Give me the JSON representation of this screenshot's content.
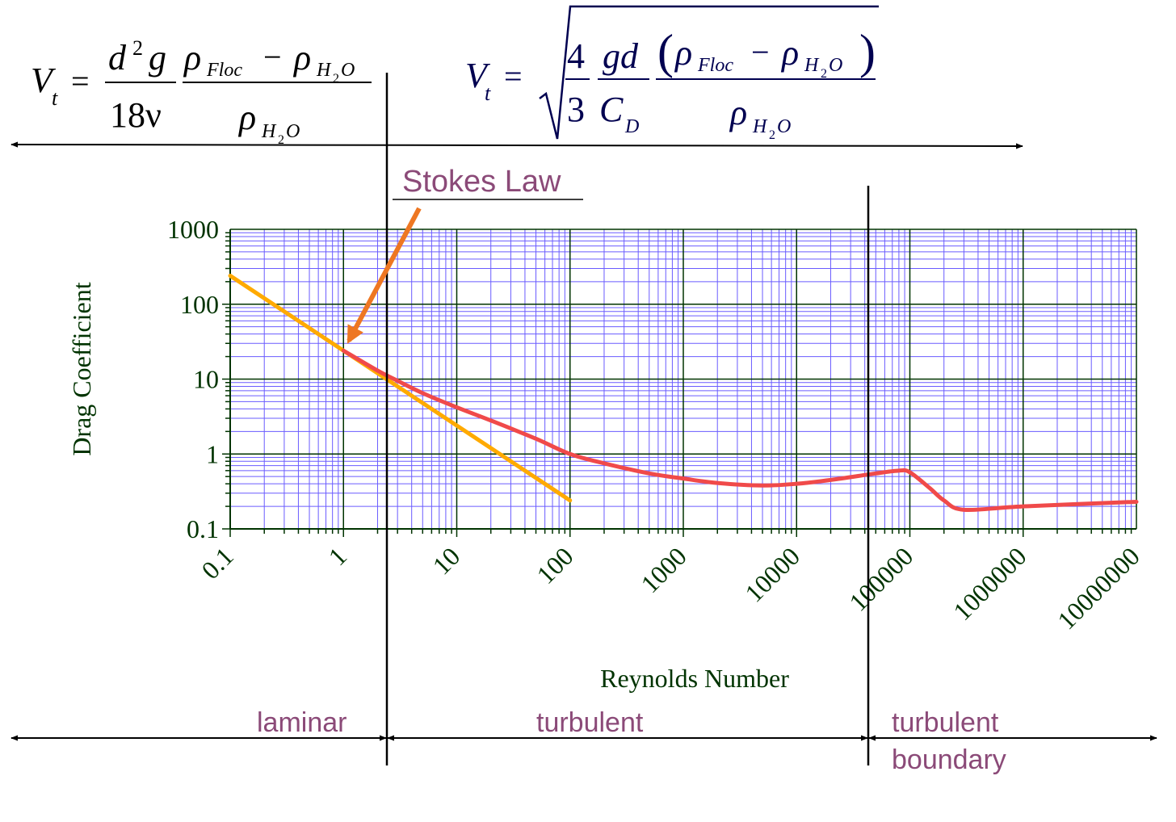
{
  "equations": {
    "stokes": {
      "lhs_v": "V",
      "lhs_t": "t",
      "eq": "=",
      "frac1_num_d": "d",
      "frac1_num_2": "2",
      "frac1_num_g": "g",
      "frac1_den": "18ν",
      "frac2_num_rho1": "ρ",
      "frac2_num_sub1": "Floc",
      "minus": "−",
      "frac2_num_rho2": "ρ",
      "frac2_num_sub2a": "H",
      "frac2_num_sub2b": "2",
      "frac2_num_sub2c": "O",
      "frac2_den_rho": "ρ",
      "frac2_den_suba": "H",
      "frac2_den_subb": "2",
      "frac2_den_subc": "O"
    },
    "general": {
      "lhs_v": "V",
      "lhs_t": "t",
      "eq": "=",
      "f1_num": "4",
      "f1_den": "3",
      "f2_num": "gd",
      "f2_den_c": "C",
      "f2_den_d": "D",
      "paren_l": "(",
      "paren_r": ")",
      "f3_num_rho1": "ρ",
      "f3_num_sub1": "Floc",
      "minus": "−",
      "f3_num_rho2": "ρ",
      "f3_num_sub2a": "H",
      "f3_num_sub2b": "2",
      "f3_num_sub2c": "O",
      "f3_den_rho": "ρ",
      "f3_den_suba": "H",
      "f3_den_subb": "2",
      "f3_den_subc": "O"
    }
  },
  "annotations": {
    "stokes_law": "Stokes Law",
    "regimes": [
      "laminar",
      "turbulent",
      "turbulent",
      "boundary"
    ]
  },
  "colors": {
    "axis_text": "#003300",
    "grid_minor": "#6a5cff",
    "grid_major": "#003300",
    "stokes_line": "#ffaa00",
    "drag_curve": "#f04a4a",
    "arrow": "#ee7722",
    "annotation_text": "#8b4a78",
    "equation_text": "#000050"
  },
  "chart_data": {
    "type": "line",
    "title": "",
    "xlabel": "Reynolds Number",
    "ylabel": "Drag Coefficient",
    "xscale": "log",
    "yscale": "log",
    "xlim": [
      0.1,
      10000000
    ],
    "ylim": [
      0.1,
      1000
    ],
    "grid": true,
    "x_ticks": [
      "0.1",
      "1",
      "10",
      "100",
      "1000",
      "10000",
      "100000",
      "1000000",
      "10000000"
    ],
    "y_ticks": [
      "0.1",
      "1",
      "10",
      "100",
      "1000"
    ],
    "regime_boundaries": [
      2.5,
      450000
    ],
    "series": [
      {
        "name": "Stokes Law",
        "x": [
          0.1,
          100
        ],
        "y": [
          240,
          0.24
        ]
      },
      {
        "name": "",
        "x": [
          1,
          2,
          3,
          5,
          10,
          20,
          50,
          100,
          200,
          500,
          1000,
          2000,
          5000,
          10000,
          20000,
          50000,
          80000,
          100000,
          150000,
          200000,
          300000,
          1000000,
          10000000
        ],
        "y": [
          24,
          13,
          9.5,
          6.5,
          4.2,
          2.8,
          1.6,
          1.0,
          0.75,
          0.55,
          0.47,
          0.41,
          0.38,
          0.4,
          0.45,
          0.55,
          0.6,
          0.57,
          0.35,
          0.24,
          0.18,
          0.2,
          0.23
        ]
      }
    ]
  }
}
